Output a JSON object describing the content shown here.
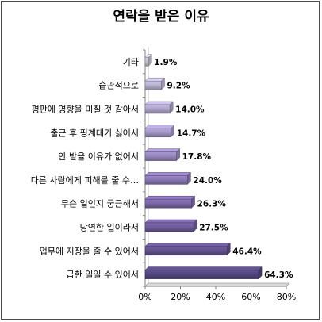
{
  "chart_data": {
    "type": "bar",
    "orientation": "horizontal",
    "title": "연락을 받은 이유",
    "categories": [
      "기타",
      "습관적으로",
      "평판에 영향을 미칠 것 같아서",
      "출근 후 핑계대기 싫어서",
      "안 받을 이유가 없어서",
      "다른 사람에게 피해를 줄 수…",
      "무슨 일인지 궁금해서",
      "당연한 일이라서",
      "업무에 지장을 줄 수 있어서",
      "급한 일일 수 있어서"
    ],
    "values": [
      1.9,
      9.2,
      14.0,
      14.7,
      17.8,
      24.0,
      26.3,
      27.5,
      46.4,
      64.3
    ],
    "value_labels": [
      "1.9%",
      "9.2%",
      "14.0%",
      "14.7%",
      "17.8%",
      "24.0%",
      "26.3%",
      "27.5%",
      "46.4%",
      "64.3%"
    ],
    "xlim": [
      0,
      80
    ],
    "x_ticks": [
      0,
      20,
      40,
      60,
      80
    ],
    "x_tick_labels": [
      "0%",
      "20%",
      "40%",
      "60%",
      "80%"
    ],
    "grid": false,
    "bar_style": "3d-cylinder",
    "bar_colors": [
      "#c4c4d0",
      "#bab4d2",
      "#b0a6cc",
      "#a497c6",
      "#9788be",
      "#8a78b4",
      "#7d6aa8",
      "#715e9c",
      "#62528e",
      "#544781"
    ]
  }
}
